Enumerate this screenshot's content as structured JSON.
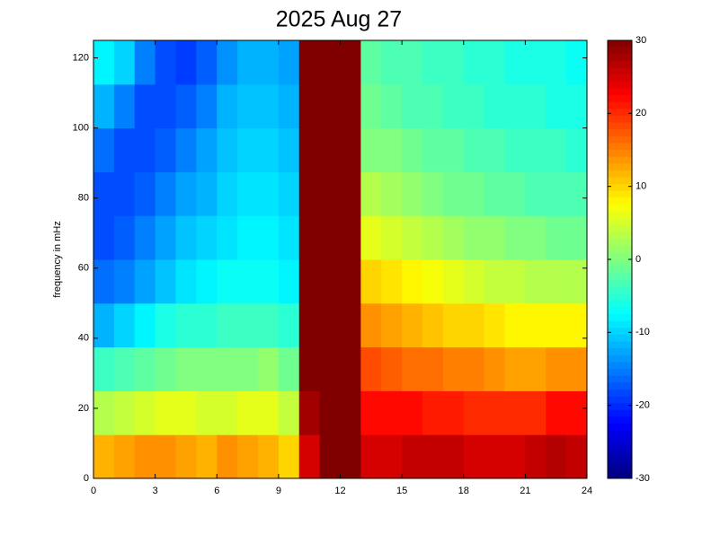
{
  "chart_data": {
    "type": "heatmap",
    "title": "2025 Aug 27",
    "y_label": "frequency in mHz",
    "colormap": "jet",
    "xbins": [
      0,
      1,
      2,
      3,
      4,
      5,
      6,
      7,
      8,
      9,
      10,
      11,
      12,
      13,
      14,
      15,
      16,
      17,
      18,
      19,
      20,
      21,
      22,
      23,
      24
    ],
    "ybins": [
      0,
      12.5,
      25,
      37.5,
      50,
      62.5,
      75,
      87.5,
      100,
      112.5,
      125
    ],
    "z": [
      [
        12,
        13,
        14,
        14,
        13,
        12,
        14,
        13,
        12,
        10,
        25,
        30,
        30,
        25,
        25,
        26,
        26,
        26,
        25,
        25,
        25,
        26,
        27,
        26
      ],
      [
        3,
        4,
        5,
        6,
        6,
        5,
        5,
        6,
        6,
        4,
        28,
        30,
        30,
        22,
        22,
        22,
        21,
        21,
        20,
        20,
        20,
        20,
        22,
        22
      ],
      [
        -4,
        -3,
        -2,
        -1,
        0,
        0,
        0,
        0,
        1,
        -1,
        30,
        30,
        30,
        18,
        17,
        16,
        16,
        15,
        15,
        14,
        13,
        13,
        14,
        14
      ],
      [
        -12,
        -10,
        -8,
        -6,
        -5,
        -5,
        -4,
        -4,
        -4,
        -5,
        30,
        30,
        30,
        14,
        13,
        12,
        11,
        10,
        10,
        9,
        8,
        8,
        8,
        8
      ],
      [
        -16,
        -15,
        -13,
        -11,
        -9,
        -8,
        -7,
        -7,
        -7,
        -8,
        30,
        30,
        30,
        10,
        9,
        8,
        7,
        6,
        5,
        4,
        4,
        3,
        3,
        3
      ],
      [
        -18,
        -17,
        -15,
        -13,
        -11,
        -10,
        -9,
        -8,
        -8,
        -9,
        30,
        30,
        30,
        6,
        5,
        4,
        3,
        2,
        1,
        1,
        0,
        0,
        -1,
        -1
      ],
      [
        -18,
        -18,
        -17,
        -15,
        -13,
        -12,
        -10,
        -9,
        -9,
        -10,
        30,
        30,
        30,
        3,
        2,
        1,
        0,
        -1,
        -1,
        -2,
        -2,
        -3,
        -3,
        -3
      ],
      [
        -16,
        -18,
        -18,
        -17,
        -15,
        -13,
        -11,
        -10,
        -10,
        -11,
        30,
        30,
        30,
        0,
        0,
        -1,
        -2,
        -2,
        -3,
        -3,
        -4,
        -4,
        -4,
        -5
      ],
      [
        -12,
        -15,
        -18,
        -18,
        -17,
        -15,
        -12,
        -11,
        -11,
        -12,
        30,
        30,
        30,
        -1,
        -2,
        -3,
        -3,
        -4,
        -4,
        -5,
        -5,
        -5,
        -6,
        -6
      ],
      [
        -8,
        -10,
        -15,
        -18,
        -19,
        -17,
        -14,
        -12,
        -12,
        -13,
        30,
        30,
        30,
        -2,
        -3,
        -3,
        -4,
        -4,
        -5,
        -5,
        -6,
        -6,
        -6,
        -7
      ]
    ],
    "xlim": [
      0,
      24
    ],
    "xticks": [
      0,
      3,
      6,
      9,
      12,
      15,
      18,
      21,
      24
    ],
    "ylim": [
      0,
      125
    ],
    "yticks": [
      0,
      20,
      40,
      60,
      80,
      100,
      120
    ],
    "clim": [
      -30,
      30
    ],
    "cticks": [
      -30,
      -20,
      -10,
      0,
      10,
      20,
      30
    ]
  }
}
